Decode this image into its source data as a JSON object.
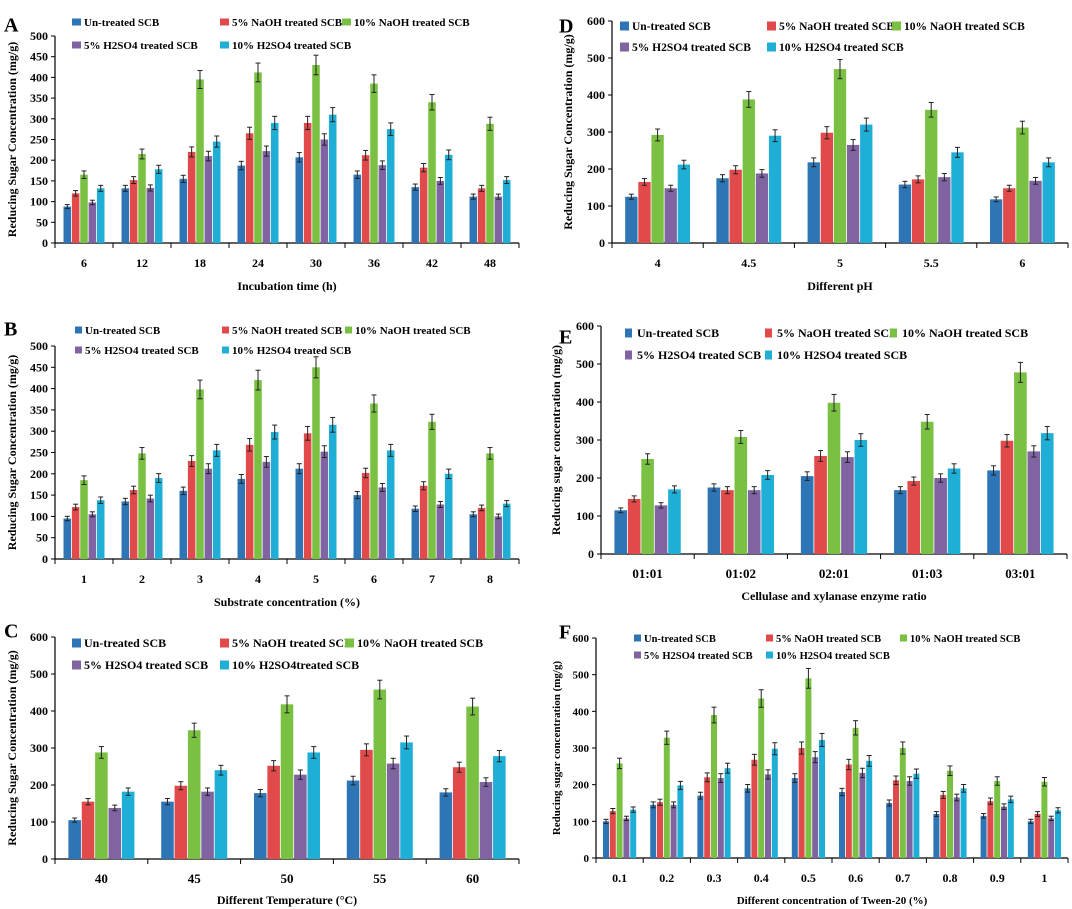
{
  "colors": {
    "untreated": "#2e75b6",
    "naoh5": "#e04a4a",
    "naoh10": "#7ac143",
    "h2so4_5": "#8064a2",
    "h2so4_10": "#1eaed6",
    "error": "#222222",
    "axis": "#000000"
  },
  "chart_data": [
    {
      "panel": "A",
      "type": "bar",
      "xlabel": "Incubation time (h)",
      "ylabel": "Reducing Sugar Concentration (mg/g)",
      "ylim": [
        0,
        500
      ],
      "ytick_step": 50,
      "categories": [
        "6",
        "12",
        "18",
        "24",
        "30",
        "36",
        "42",
        "48"
      ],
      "legend": [
        "Un-treated SCB",
        "5% NaOH treated SCB",
        "10% NaOH treated SCB",
        "5% H2SO4 treated SCB",
        "10% H2SO4 treated SCB"
      ],
      "series": [
        {
          "name": "Un-treated SCB",
          "values": [
            88,
            132,
            155,
            187,
            207,
            165,
            135,
            112
          ]
        },
        {
          "name": "5% NaOH treated SCB",
          "values": [
            120,
            152,
            220,
            265,
            290,
            212,
            182,
            132
          ]
        },
        {
          "name": "10% NaOH treated SCB",
          "values": [
            165,
            215,
            395,
            412,
            430,
            385,
            340,
            288
          ]
        },
        {
          "name": "5% H2SO4 treated SCB",
          "values": [
            98,
            133,
            210,
            222,
            250,
            188,
            150,
            112
          ]
        },
        {
          "name": "10% H2SO4 treated SCB",
          "values": [
            132,
            178,
            245,
            290,
            310,
            275,
            213,
            152
          ]
        }
      ]
    },
    {
      "panel": "B",
      "type": "bar",
      "xlabel": "Substrate concentration (%)",
      "ylabel": "Reducing Sugar Concentration (mg/g)",
      "ylim": [
        0,
        500
      ],
      "ytick_step": 50,
      "categories": [
        "1",
        "2",
        "3",
        "4",
        "5",
        "6",
        "7",
        "8"
      ],
      "legend": [
        "Un-treated SCB",
        "5% NaOH treated SCB",
        "10% NaOH treated SCB",
        "5% H2SO4 treated SCB",
        "10% H2SO4 treated SCB"
      ],
      "series": [
        {
          "name": "Un-treated SCB",
          "values": [
            95,
            135,
            160,
            188,
            212,
            150,
            118,
            105
          ]
        },
        {
          "name": "5% NaOH treated SCB",
          "values": [
            122,
            162,
            230,
            268,
            295,
            202,
            172,
            120
          ]
        },
        {
          "name": "10% NaOH treated SCB",
          "values": [
            185,
            248,
            398,
            420,
            450,
            365,
            322,
            248
          ]
        },
        {
          "name": "5% H2SO4 treated SCB",
          "values": [
            105,
            142,
            212,
            228,
            252,
            168,
            128,
            100
          ]
        },
        {
          "name": "10% H2SO4 treated SCB",
          "values": [
            138,
            190,
            255,
            298,
            315,
            255,
            200,
            130
          ]
        }
      ]
    },
    {
      "panel": "C",
      "type": "bar",
      "xlabel": "Different Temperature (°C)",
      "ylabel": "Reducing Sugar Concentration (mg/g)",
      "ylim": [
        0,
        600
      ],
      "ytick_step": 100,
      "categories": [
        "40",
        "45",
        "50",
        "55",
        "60"
      ],
      "legend": [
        "Un-treated SCB",
        "5% NaOH treated SCB",
        "10% NaOH treated SCB",
        "5% H2SO4 treated SCB",
        "10% H2SO4treated SCB"
      ],
      "series": [
        {
          "name": "Un-treated SCB",
          "values": [
            105,
            155,
            178,
            212,
            180
          ]
        },
        {
          "name": "5% NaOH treated SCB",
          "values": [
            155,
            198,
            252,
            295,
            248
          ]
        },
        {
          "name": "10% NaOH treated SCB",
          "values": [
            288,
            348,
            418,
            458,
            412
          ]
        },
        {
          "name": "5% H2SO4 treated SCB",
          "values": [
            138,
            182,
            228,
            258,
            208
          ]
        },
        {
          "name": "10% H2SO4treated SCB",
          "values": [
            182,
            240,
            288,
            315,
            278
          ]
        }
      ]
    },
    {
      "panel": "D",
      "type": "bar",
      "xlabel": "Different pH",
      "ylabel": "Reducing Sugar Concentration (mg/g)",
      "ylim": [
        0,
        600
      ],
      "ytick_step": 100,
      "categories": [
        "4",
        "4.5",
        "5",
        "5.5",
        "6"
      ],
      "legend": [
        "Un-treated SCB",
        "5% NaOH treated SCB",
        "10% NaOH treated SCB",
        "5% H2SO4 treated SCB",
        "10% H2SO4 treated SCB"
      ],
      "series": [
        {
          "name": "Un-treated SCB",
          "values": [
            125,
            175,
            218,
            158,
            118
          ]
        },
        {
          "name": "5% NaOH treated SCB",
          "values": [
            165,
            198,
            298,
            172,
            148
          ]
        },
        {
          "name": "10% NaOH treated SCB",
          "values": [
            292,
            388,
            470,
            360,
            312
          ]
        },
        {
          "name": "5% H2SO4 treated SCB",
          "values": [
            148,
            188,
            265,
            178,
            168
          ]
        },
        {
          "name": "10% H2SO4 treated SCB",
          "values": [
            212,
            290,
            320,
            245,
            218
          ]
        }
      ]
    },
    {
      "panel": "E",
      "type": "bar",
      "xlabel": "Cellulase and xylanase enzyme ratio",
      "ylabel": "Reducing sugar concentration (mg/g)",
      "ylim": [
        0,
        600
      ],
      "ytick_step": 100,
      "categories": [
        "01:01",
        "01:02",
        "02:01",
        "01:03",
        "03:01"
      ],
      "legend": [
        "Un-treated SCB",
        "5% NaOH treated SCB",
        "10% NaOH treated SCB",
        "5% H2SO4 treated SCB",
        "10% H2SO4 treated SCB"
      ],
      "series": [
        {
          "name": "Un-treated SCB",
          "values": [
            115,
            175,
            205,
            168,
            220
          ]
        },
        {
          "name": "5% NaOH treated SCB",
          "values": [
            145,
            168,
            258,
            192,
            298
          ]
        },
        {
          "name": "10% NaOH treated SCB",
          "values": [
            250,
            308,
            398,
            348,
            478
          ]
        },
        {
          "name": "5% H2SO4 treated SCB",
          "values": [
            128,
            168,
            255,
            200,
            270
          ]
        },
        {
          "name": "10% H2SO4 treated SCB",
          "values": [
            170,
            208,
            300,
            225,
            318
          ]
        }
      ]
    },
    {
      "panel": "F",
      "type": "bar",
      "xlabel": "Different concentration of Tween-20 (%)",
      "ylabel": "Reducing sugar concentration (mg/g)",
      "ylim": [
        0,
        600
      ],
      "ytick_step": 100,
      "categories": [
        "0.1",
        "0.2",
        "0.3",
        "0.4",
        "0.5",
        "0.6",
        "0.7",
        "0.8",
        "0.9",
        "1"
      ],
      "legend": [
        "Un-treated SCB",
        "5% NaOH treated SCB",
        "10% NaOH treated SCB",
        "5% H2SO4 treated SCB",
        "10% H2SO4 treated SCB"
      ],
      "series": [
        {
          "name": "Un-treated SCB",
          "values": [
            100,
            145,
            170,
            190,
            218,
            180,
            150,
            120,
            115,
            100
          ]
        },
        {
          "name": "5% NaOH treated SCB",
          "values": [
            128,
            152,
            220,
            268,
            300,
            255,
            212,
            172,
            155,
            120
          ]
        },
        {
          "name": "10% NaOH treated SCB",
          "values": [
            258,
            328,
            390,
            435,
            490,
            355,
            300,
            238,
            210,
            208
          ]
        },
        {
          "name": "5% H2SO4 treated SCB",
          "values": [
            108,
            145,
            218,
            228,
            275,
            232,
            210,
            165,
            140,
            108
          ]
        },
        {
          "name": "10% H2SO4 treated SCB",
          "values": [
            132,
            198,
            245,
            298,
            322,
            265,
            230,
            190,
            160,
            130
          ]
        }
      ]
    }
  ]
}
